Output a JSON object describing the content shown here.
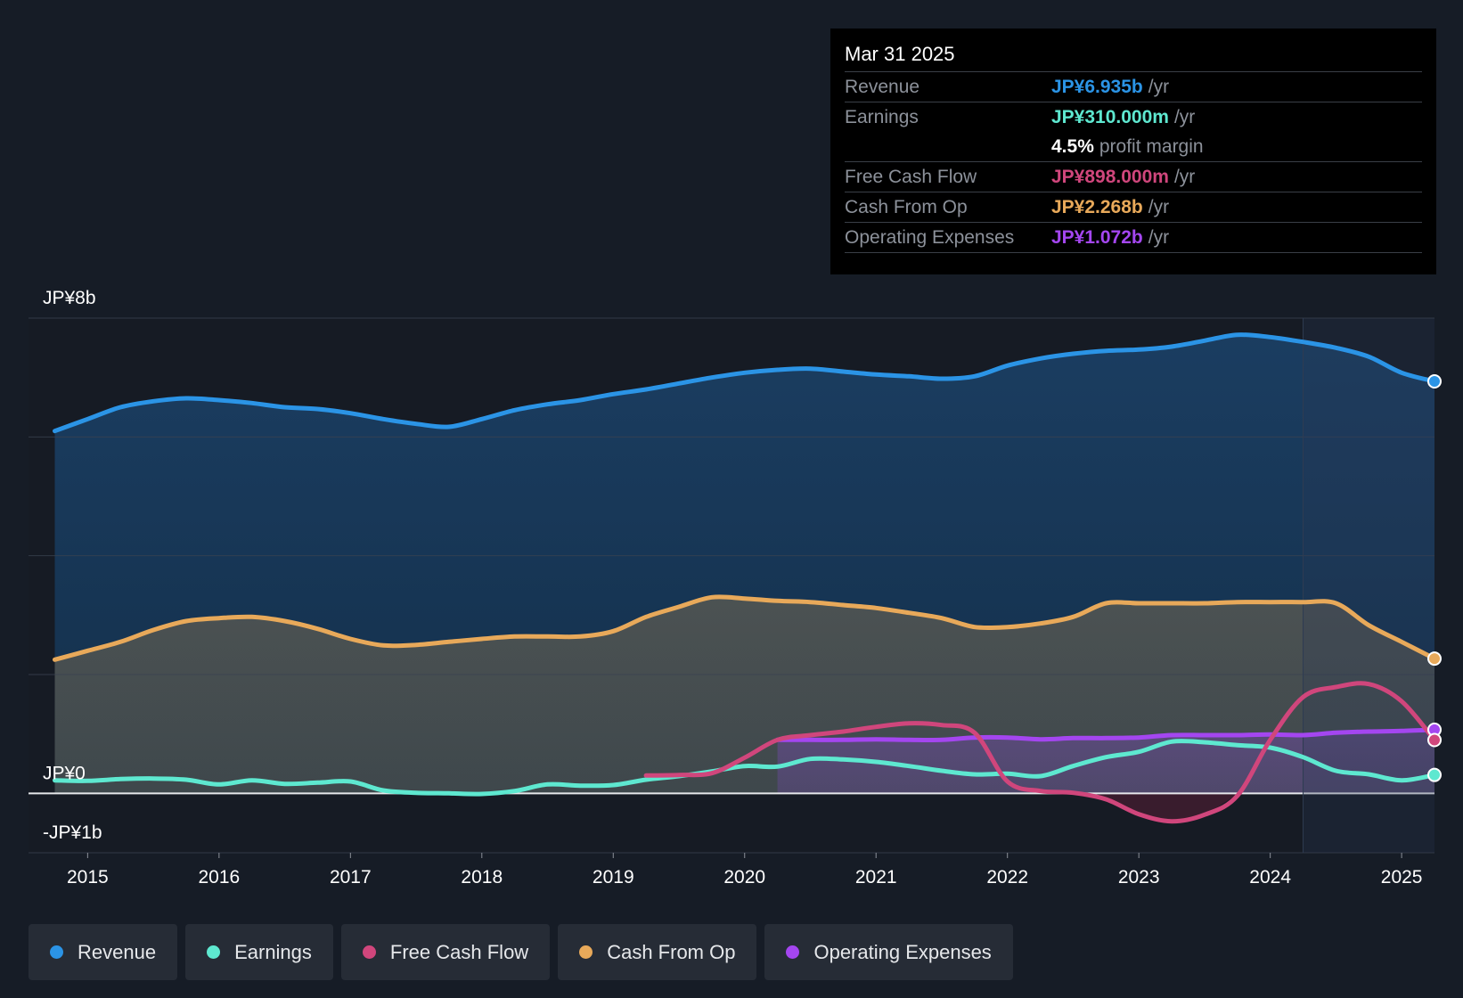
{
  "colors": {
    "revenue": "#2b94e6",
    "earnings": "#5ee8d0",
    "free_cash_flow": "#d0467c",
    "cash_from_op": "#e8a95a",
    "operating_expenses": "#a446f0"
  },
  "tooltip": {
    "date": "Mar 31 2025",
    "rows": [
      {
        "label": "Revenue",
        "value": "JP¥6.935b",
        "unit": "/yr"
      },
      {
        "label": "Earnings",
        "value": "JP¥310.000m",
        "unit": "/yr"
      },
      {
        "label": "",
        "pct": "4.5%",
        "note": "profit margin"
      },
      {
        "label": "Free Cash Flow",
        "value": "JP¥898.000m",
        "unit": "/yr"
      },
      {
        "label": "Cash From Op",
        "value": "JP¥2.268b",
        "unit": "/yr"
      },
      {
        "label": "Operating Expenses",
        "value": "JP¥1.072b",
        "unit": "/yr"
      }
    ]
  },
  "legend": [
    {
      "label": "Revenue",
      "color_key": "revenue"
    },
    {
      "label": "Earnings",
      "color_key": "earnings"
    },
    {
      "label": "Free Cash Flow",
      "color_key": "free_cash_flow"
    },
    {
      "label": "Cash From Op",
      "color_key": "cash_from_op"
    },
    {
      "label": "Operating Expenses",
      "color_key": "operating_expenses"
    }
  ],
  "chart_data": {
    "type": "line",
    "title": "",
    "xlabel": "",
    "ylabel": "",
    "ylim": [
      -1,
      8
    ],
    "xlim": [
      2014.55,
      2025.25
    ],
    "y_tick_labels": [
      {
        "value": 8,
        "label": "JP¥8b"
      },
      {
        "value": 0,
        "label": "JP¥0"
      },
      {
        "value": -1,
        "label": "-JP¥1b"
      }
    ],
    "gridlines": [
      8,
      6,
      4,
      2,
      0,
      -1
    ],
    "x_ticks": [
      2015,
      2016,
      2017,
      2018,
      2019,
      2020,
      2021,
      2022,
      2023,
      2024,
      2025
    ],
    "x_tick_labels": [
      "2015",
      "2016",
      "2017",
      "2018",
      "2019",
      "2020",
      "2021",
      "2022",
      "2023",
      "2024",
      "2025"
    ],
    "past_data_from": 2024.25,
    "series": [
      {
        "name": "Revenue",
        "color_key": "revenue",
        "fill": true,
        "x": [
          2014.75,
          2015.0,
          2015.25,
          2015.5,
          2015.75,
          2016.0,
          2016.25,
          2016.5,
          2016.75,
          2017.0,
          2017.25,
          2017.5,
          2017.75,
          2018.0,
          2018.25,
          2018.5,
          2018.75,
          2019.0,
          2019.25,
          2019.5,
          2019.75,
          2020.0,
          2020.25,
          2020.5,
          2020.75,
          2021.0,
          2021.25,
          2021.5,
          2021.75,
          2022.0,
          2022.25,
          2022.5,
          2022.75,
          2023.0,
          2023.25,
          2023.5,
          2023.75,
          2024.0,
          2024.25,
          2024.5,
          2024.75,
          2025.0,
          2025.25
        ],
        "values": [
          6.1,
          6.3,
          6.5,
          6.6,
          6.65,
          6.62,
          6.57,
          6.5,
          6.47,
          6.4,
          6.3,
          6.22,
          6.17,
          6.3,
          6.45,
          6.55,
          6.62,
          6.72,
          6.8,
          6.9,
          7.0,
          7.08,
          7.13,
          7.15,
          7.1,
          7.05,
          7.02,
          6.98,
          7.02,
          7.2,
          7.32,
          7.4,
          7.45,
          7.47,
          7.52,
          7.62,
          7.72,
          7.68,
          7.6,
          7.5,
          7.35,
          7.08,
          6.935
        ]
      },
      {
        "name": "Cash From Op",
        "color_key": "cash_from_op",
        "fill": true,
        "x": [
          2014.75,
          2015.0,
          2015.25,
          2015.5,
          2015.75,
          2016.0,
          2016.25,
          2016.5,
          2016.75,
          2017.0,
          2017.25,
          2017.5,
          2017.75,
          2018.0,
          2018.25,
          2018.5,
          2018.75,
          2019.0,
          2019.25,
          2019.5,
          2019.75,
          2020.0,
          2020.25,
          2020.5,
          2020.75,
          2021.0,
          2021.25,
          2021.5,
          2021.75,
          2022.0,
          2022.25,
          2022.5,
          2022.75,
          2023.0,
          2023.25,
          2023.5,
          2023.75,
          2024.0,
          2024.25,
          2024.5,
          2024.75,
          2025.0,
          2025.25
        ],
        "values": [
          2.25,
          2.4,
          2.55,
          2.75,
          2.9,
          2.95,
          2.97,
          2.9,
          2.77,
          2.6,
          2.49,
          2.5,
          2.55,
          2.6,
          2.64,
          2.64,
          2.64,
          2.73,
          2.97,
          3.14,
          3.3,
          3.28,
          3.24,
          3.22,
          3.17,
          3.12,
          3.04,
          2.95,
          2.8,
          2.8,
          2.86,
          2.97,
          3.2,
          3.2,
          3.2,
          3.2,
          3.22,
          3.22,
          3.22,
          3.2,
          2.83,
          2.55,
          2.268
        ]
      },
      {
        "name": "Operating Expenses",
        "color_key": "operating_expenses",
        "fill": true,
        "x": [
          2020.25,
          2020.5,
          2020.75,
          2021.0,
          2021.25,
          2021.5,
          2021.75,
          2022.0,
          2022.25,
          2022.5,
          2022.75,
          2023.0,
          2023.25,
          2023.5,
          2023.75,
          2024.0,
          2024.25,
          2024.5,
          2024.75,
          2025.0,
          2025.25
        ],
        "values": [
          0.9,
          0.9,
          0.9,
          0.91,
          0.9,
          0.9,
          0.94,
          0.94,
          0.91,
          0.93,
          0.93,
          0.94,
          0.98,
          0.98,
          0.98,
          0.99,
          0.98,
          1.02,
          1.04,
          1.05,
          1.072
        ]
      },
      {
        "name": "Earnings",
        "color_key": "earnings",
        "fill": false,
        "x": [
          2014.75,
          2015.0,
          2015.25,
          2015.5,
          2015.75,
          2016.0,
          2016.25,
          2016.5,
          2016.75,
          2017.0,
          2017.25,
          2017.5,
          2017.75,
          2018.0,
          2018.25,
          2018.5,
          2018.75,
          2019.0,
          2019.25,
          2019.5,
          2019.75,
          2020.0,
          2020.25,
          2020.5,
          2020.75,
          2021.0,
          2021.25,
          2021.5,
          2021.75,
          2022.0,
          2022.25,
          2022.5,
          2022.75,
          2023.0,
          2023.25,
          2023.5,
          2023.75,
          2024.0,
          2024.25,
          2024.5,
          2024.75,
          2025.0,
          2025.25
        ],
        "values": [
          0.22,
          0.21,
          0.24,
          0.25,
          0.23,
          0.15,
          0.22,
          0.16,
          0.18,
          0.2,
          0.05,
          0.01,
          0.0,
          -0.01,
          0.04,
          0.15,
          0.13,
          0.14,
          0.23,
          0.29,
          0.37,
          0.46,
          0.45,
          0.58,
          0.57,
          0.53,
          0.46,
          0.38,
          0.32,
          0.33,
          0.29,
          0.46,
          0.61,
          0.7,
          0.87,
          0.86,
          0.81,
          0.77,
          0.61,
          0.38,
          0.32,
          0.22,
          0.31
        ]
      },
      {
        "name": "Free Cash Flow",
        "color_key": "free_cash_flow",
        "fill": false,
        "x": [
          2019.25,
          2019.5,
          2019.75,
          2020.0,
          2020.25,
          2020.5,
          2020.75,
          2021.0,
          2021.25,
          2021.5,
          2021.75,
          2022.0,
          2022.25,
          2022.5,
          2022.75,
          2023.0,
          2023.25,
          2023.5,
          2023.75,
          2024.0,
          2024.25,
          2024.5,
          2024.75,
          2025.0,
          2025.25
        ],
        "values": [
          0.3,
          0.31,
          0.34,
          0.6,
          0.9,
          0.98,
          1.04,
          1.12,
          1.18,
          1.15,
          1.02,
          0.2,
          0.04,
          0.01,
          -0.1,
          -0.35,
          -0.47,
          -0.36,
          -0.04,
          0.9,
          1.62,
          1.79,
          1.84,
          1.55,
          0.898
        ]
      }
    ]
  }
}
